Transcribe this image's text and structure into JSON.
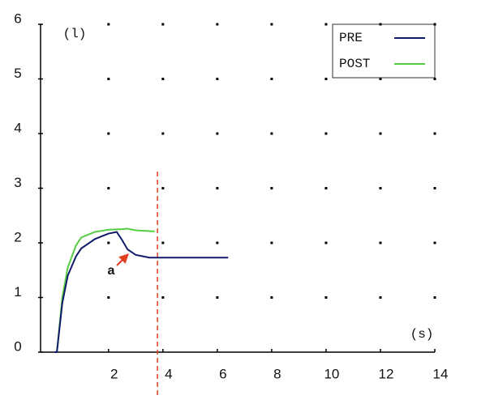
{
  "chart_data": {
    "type": "line",
    "y_label": "(l)",
    "x_label": "(s)",
    "xlim": [
      -0.5,
      14
    ],
    "ylim": [
      0,
      6
    ],
    "xticks": [
      2,
      4,
      6,
      8,
      10,
      12,
      14
    ],
    "yticks": [
      0,
      1,
      2,
      3,
      4,
      5,
      6
    ],
    "grid": "dots",
    "legend": "upper right",
    "series": [
      {
        "name": "PRE",
        "color": "#101a6b",
        "x": [
          0,
          0.1,
          0.3,
          0.5,
          0.8,
          1,
          1.5,
          2,
          2.3,
          2.5,
          2.7,
          3,
          3.5,
          4,
          5,
          6.4
        ],
        "values": [
          0,
          0,
          0.9,
          1.4,
          1.75,
          1.9,
          2.07,
          2.17,
          2.2,
          2.05,
          1.88,
          1.78,
          1.73,
          1.73,
          1.73,
          1.73
        ]
      },
      {
        "name": "POST",
        "color": "#55cc44",
        "x": [
          0,
          0.1,
          0.3,
          0.5,
          0.8,
          1,
          1.5,
          2,
          2.5,
          2.7,
          3,
          3.7
        ],
        "values": [
          0,
          0,
          1.0,
          1.55,
          1.95,
          2.1,
          2.2,
          2.24,
          2.25,
          2.26,
          2.23,
          2.21
        ]
      }
    ],
    "marker_x": 3.8,
    "marker_color": "#e04020",
    "annotation": "a"
  }
}
